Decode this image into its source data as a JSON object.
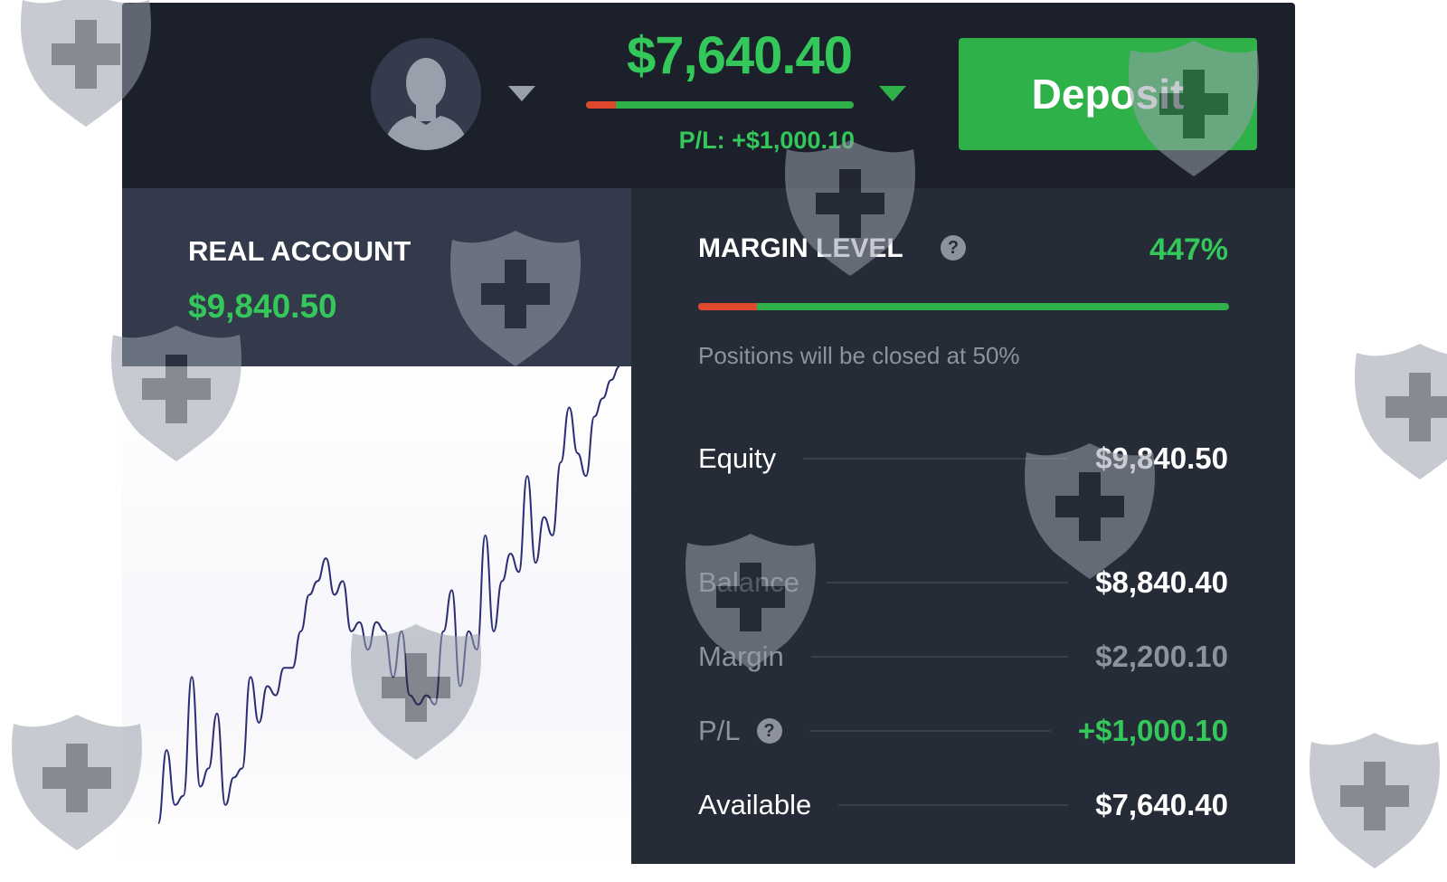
{
  "header": {
    "avatar_icon": "user-avatar-icon",
    "account_caret_icon": "caret-down-icon",
    "available_amount": "$7,640.40",
    "available_bar_red_percent": 11,
    "pl_text": "P/L: +$1,000.10",
    "balance_caret_icon": "caret-down-icon",
    "deposit_label": "Deposit"
  },
  "account": {
    "label": "REAL ACCOUNT",
    "value": "$9,840.50"
  },
  "margin": {
    "label": "MARGIN LEVEL",
    "help": "?",
    "value": "447%",
    "bar_red_percent": 11,
    "note": "Positions will be closed at 50%",
    "rows": [
      {
        "label": "Equity",
        "value": "$9,840.50",
        "label_color": "#ffffff",
        "value_color": "#ffffff"
      },
      {
        "label": "Balance",
        "value": "$8,840.40",
        "label_color": "#8d929c",
        "value_color": "#ffffff"
      },
      {
        "label": "Margin",
        "value": "$2,200.10",
        "label_color": "#8d929c",
        "value_color": "#8d929c"
      },
      {
        "label": "P/L",
        "value": "+$1,000.10",
        "label_color": "#8d929c",
        "value_color": "#34c759",
        "help": "?"
      },
      {
        "label": "Available",
        "value": "$7,640.40",
        "label_color": "#ffffff",
        "value_color": "#ffffff"
      }
    ]
  },
  "chart_data": {
    "type": "line",
    "values": [
      0,
      16,
      4,
      6,
      32,
      8,
      12,
      24,
      4,
      10,
      12,
      32,
      22,
      30,
      28,
      34,
      34,
      42,
      50,
      53,
      58,
      50,
      53,
      42,
      44,
      38,
      44,
      42,
      32,
      42,
      28,
      26,
      28,
      26,
      42,
      51,
      30,
      42,
      38,
      63,
      42,
      53,
      59,
      55,
      76,
      57,
      67,
      63,
      79,
      91,
      81,
      76,
      89,
      93,
      97,
      100
    ],
    "line_color": "#2b2e73",
    "grid": false
  },
  "colors": {
    "accent_green": "#34c759",
    "danger_red": "#e0482e",
    "header_bg": "#1b202b",
    "panel_bg": "#252b37"
  }
}
